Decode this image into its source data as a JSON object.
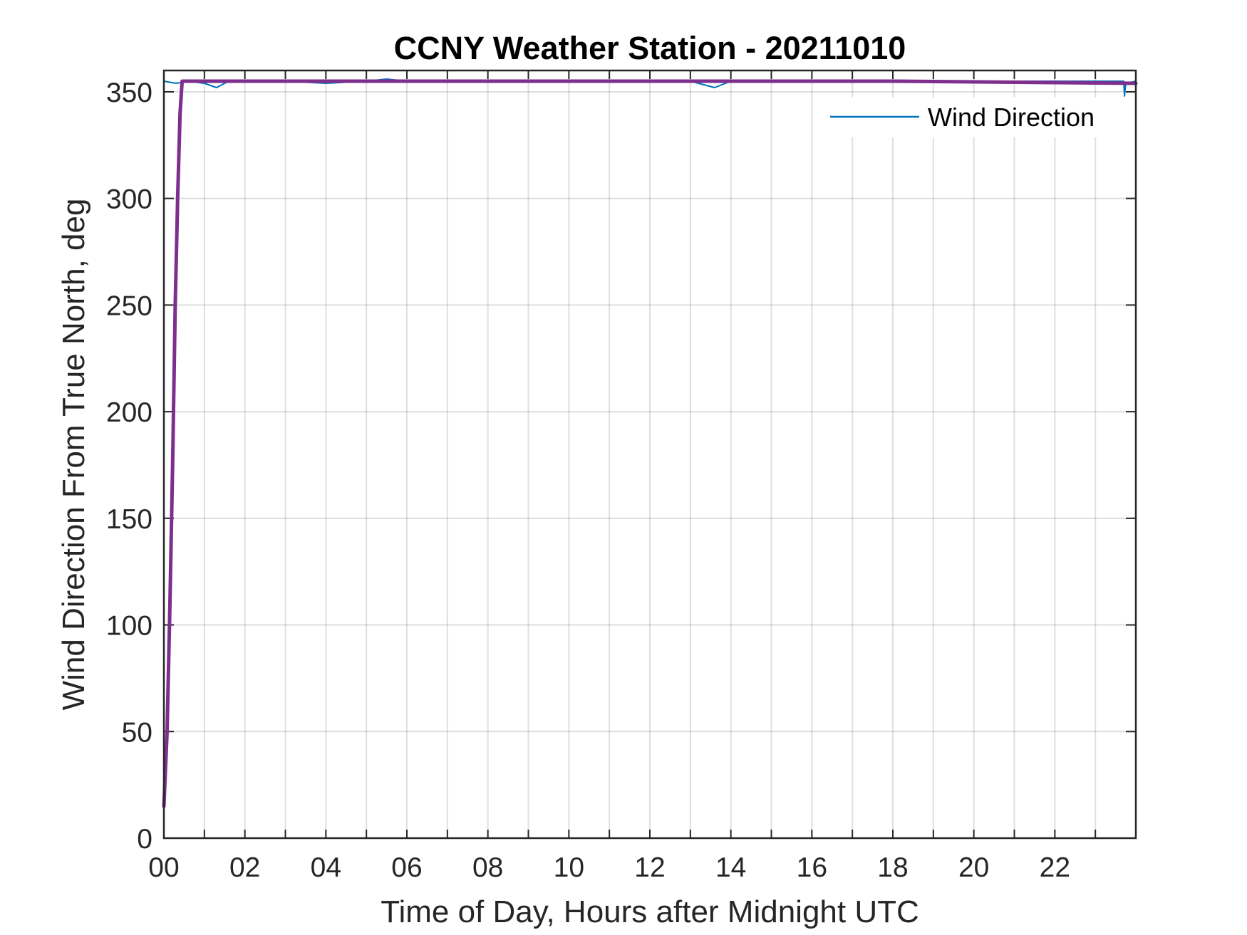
{
  "chart_data": {
    "type": "line",
    "title": "CCNY Weather Station - 20211010",
    "xlabel": "Time of Day, Hours after Midnight UTC",
    "ylabel": "Wind Direction From True North, deg",
    "xlim": [
      0,
      24
    ],
    "ylim": [
      0,
      360
    ],
    "x_ticks": [
      0,
      2,
      4,
      6,
      8,
      10,
      12,
      14,
      16,
      18,
      20,
      22
    ],
    "x_tick_labels": [
      "00",
      "02",
      "04",
      "06",
      "08",
      "10",
      "12",
      "14",
      "16",
      "18",
      "20",
      "22"
    ],
    "y_ticks": [
      0,
      50,
      100,
      150,
      200,
      250,
      300,
      350
    ],
    "y_tick_labels": [
      "0",
      "50",
      "100",
      "150",
      "200",
      "250",
      "300",
      "350"
    ],
    "grid": true,
    "legend": {
      "location": "top-right",
      "entries": [
        "Wind Direction"
      ]
    },
    "series": [
      {
        "name": "Wind Direction",
        "color": "#0072BD",
        "x": [
          0.0,
          0.3,
          0.6,
          1.0,
          1.3,
          1.6,
          2.0,
          3.0,
          4.0,
          5.0,
          5.5,
          6.0,
          7.0,
          9.0,
          11.0,
          13.0,
          13.6,
          14.0,
          16.0,
          18.0,
          20.0,
          22.0,
          23.7,
          23.72,
          23.75,
          24.0
        ],
        "y": [
          355,
          354,
          355,
          354,
          352,
          355,
          355,
          355,
          354,
          355,
          356,
          355,
          355,
          355,
          355,
          355,
          352,
          355,
          355,
          355,
          355,
          355,
          355,
          348,
          354,
          355
        ]
      },
      {
        "color": "#7E2F8E",
        "x": [
          0.0,
          0.08,
          0.15,
          0.22,
          0.28,
          0.34,
          0.4,
          0.45,
          1.0,
          6.0,
          12.0,
          18.0,
          24.0
        ],
        "y": [
          15,
          50,
          110,
          180,
          250,
          300,
          340,
          355,
          355,
          355,
          355,
          355,
          354
        ]
      }
    ]
  }
}
